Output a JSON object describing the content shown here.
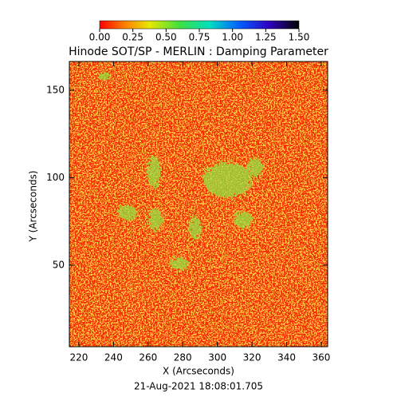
{
  "chart_data": {
    "type": "heatmap",
    "title": "Hinode SOT/SP - MERLIN : Damping Parameter",
    "xlabel": "X (Arcseconds)",
    "ylabel": "Y (Arcseconds)",
    "subtitle": "21-Aug-2021 18:08:01.705",
    "xlim": [
      214.5,
      363.7
    ],
    "xticks": [
      220,
      240,
      260,
      280,
      300,
      320,
      340,
      360
    ],
    "ylim": [
      3.4,
      166.4
    ],
    "yticks": [
      50,
      100,
      150
    ],
    "colorbar": {
      "lim": [
        0,
        1.5
      ],
      "ticks": [
        {
          "value": 0,
          "label": "0.00"
        },
        {
          "value": 0.25,
          "label": "0.25"
        },
        {
          "value": 0.5,
          "label": "0.50"
        },
        {
          "value": 0.75,
          "label": "0.75"
        },
        {
          "value": 1,
          "label": "1.00"
        },
        {
          "value": 1.25,
          "label": "1.25"
        },
        {
          "value": 1.5,
          "label": "1.50"
        }
      ]
    }
  }
}
